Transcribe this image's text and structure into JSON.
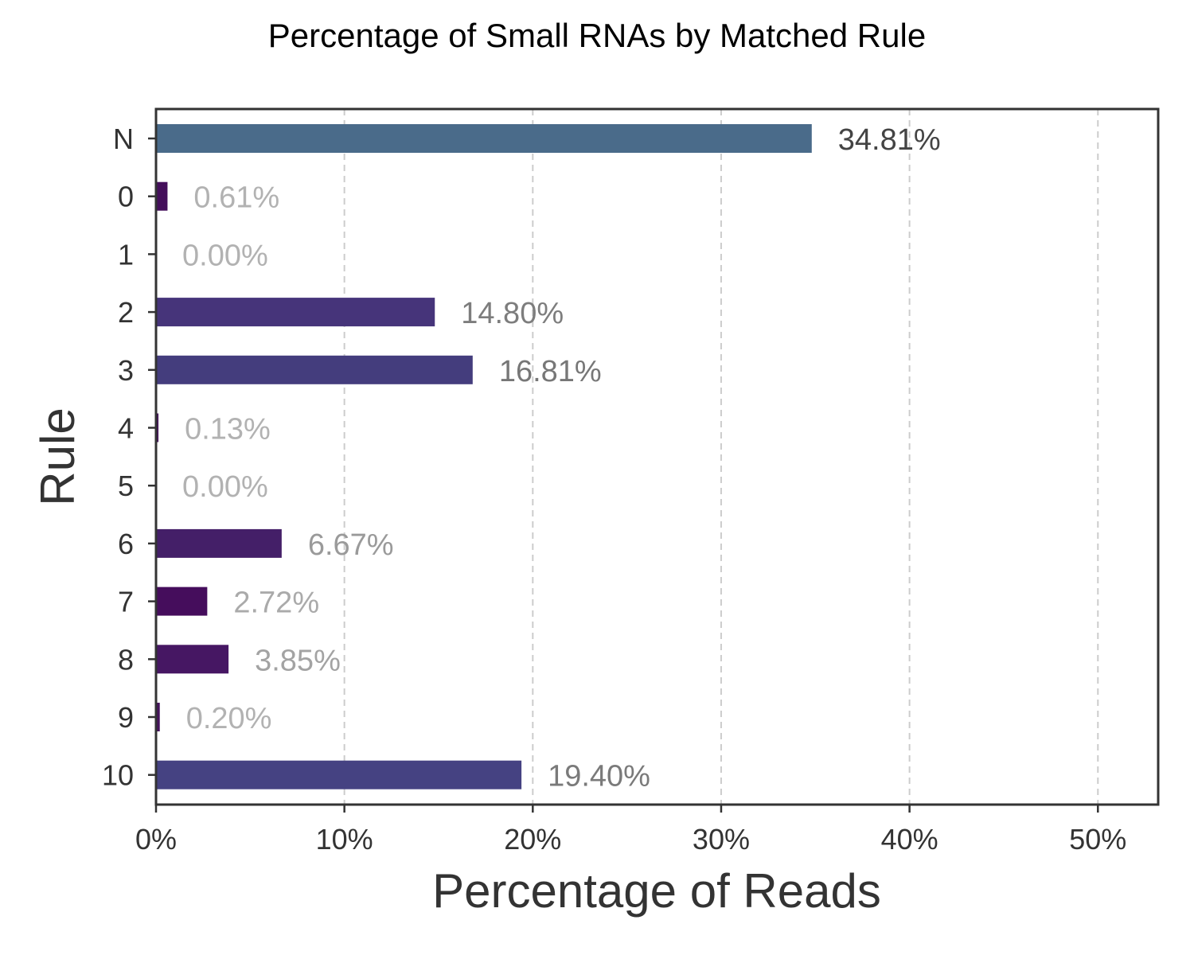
{
  "chart_data": {
    "type": "bar",
    "orientation": "horizontal",
    "title": "Percentage of Small RNAs by Matched Rule",
    "xlabel": "Percentage of Reads",
    "ylabel": "Rule",
    "categories": [
      "N",
      "0",
      "1",
      "2",
      "3",
      "4",
      "5",
      "6",
      "7",
      "8",
      "9",
      "10"
    ],
    "values": [
      34.81,
      0.61,
      0.0,
      14.8,
      16.81,
      0.13,
      0.0,
      6.67,
      2.72,
      3.85,
      0.2,
      19.4
    ],
    "value_labels": [
      "34.81%",
      "0.61%",
      "0.00%",
      "14.80%",
      "16.81%",
      "0.13%",
      "0.00%",
      "6.67%",
      "2.72%",
      "3.85%",
      "0.20%",
      "19.40%"
    ],
    "xlim": [
      0,
      53.2
    ],
    "x_ticks": [
      0,
      10,
      20,
      30,
      40,
      50
    ],
    "x_tick_labels": [
      "0%",
      "10%",
      "20%",
      "30%",
      "40%",
      "50%"
    ],
    "grid": "vertical dashed",
    "legend": "none",
    "colors": {
      "bars": [
        "#4a6b8a",
        "#440f5b",
        "#440f5b",
        "#46347a",
        "#443d7d",
        "#45125c",
        "#440f5b",
        "#441f68",
        "#450d5c",
        "#461763",
        "#45125c",
        "#454282"
      ],
      "labels": [
        "#444444",
        "#b2b2b2",
        "#b2b2b2",
        "#7d7d7d",
        "#777777",
        "#b2b2b2",
        "#b2b2b2",
        "#9a9a9a",
        "#aaaaaa",
        "#a3a3a3",
        "#b2b2b2",
        "#7a7a7a"
      ],
      "grid": "#cccccc",
      "frame": "#333333"
    }
  }
}
